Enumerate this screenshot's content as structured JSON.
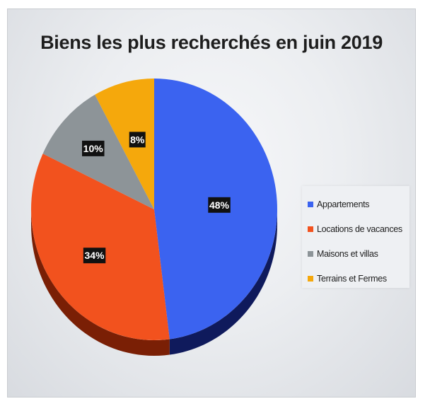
{
  "chart_data": {
    "type": "pie",
    "title": "Biens les plus recherchés en juin 2019",
    "categories": [
      "Appartements",
      "Locations de vacances",
      "Maisons et villas",
      "Terrains et Fermes"
    ],
    "values": [
      48,
      34,
      10,
      8
    ],
    "labels": [
      "48%",
      "34%",
      "10%",
      "8%"
    ],
    "unit": "%",
    "legend_position": "right",
    "colors": [
      "#3b63f0",
      "#f2521e",
      "#8d9498",
      "#f5a80c"
    ],
    "side_colors": [
      "#0f1a5c",
      "#7a1f05",
      "#4a4f52",
      "#8a5b04"
    ]
  }
}
